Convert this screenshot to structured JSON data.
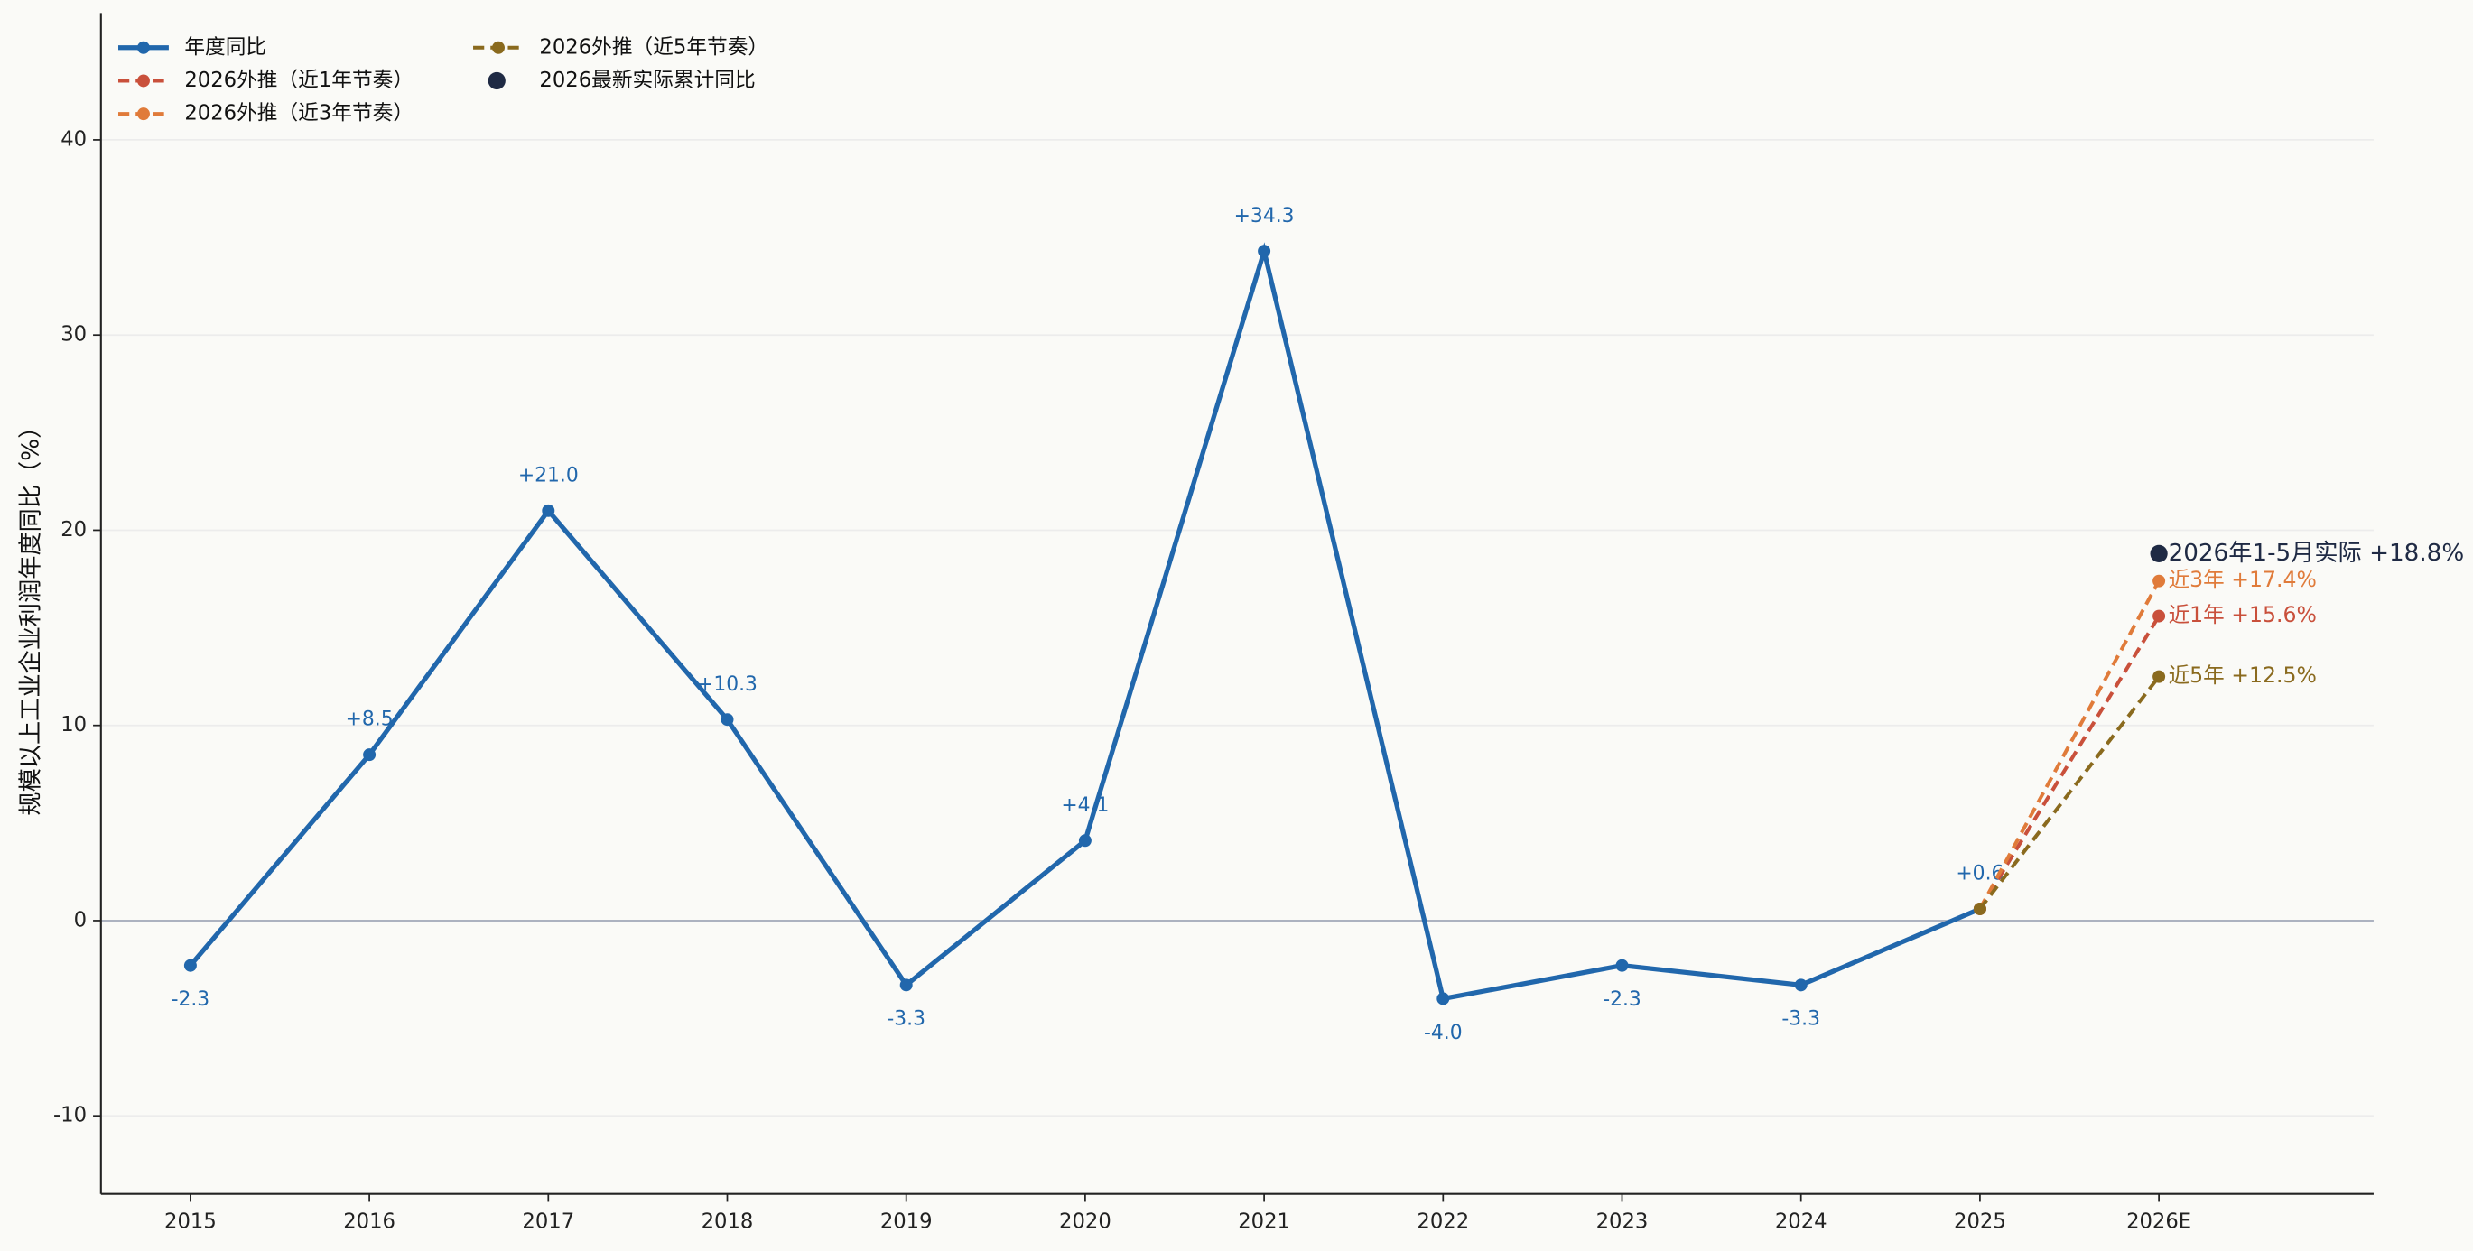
{
  "chart_data": {
    "type": "line",
    "y_label": "规模以上工业企业利润年度同比（%）",
    "categories": [
      "2015",
      "2016",
      "2017",
      "2018",
      "2019",
      "2020",
      "2021",
      "2022",
      "2023",
      "2024",
      "2025",
      "2026E"
    ],
    "ylim": [
      -14,
      46.5
    ],
    "yticks": [
      -10,
      0,
      10,
      20,
      30,
      40
    ],
    "xlim": [
      -0.5,
      12.2
    ],
    "grid": true,
    "legend": "upper left",
    "series": [
      {
        "name": "年度同比",
        "color": "#2167ac",
        "style": "solid",
        "values": [
          -2.3,
          8.5,
          21.0,
          10.3,
          -3.3,
          4.1,
          34.3,
          -4.0,
          -2.3,
          -3.3,
          0.6,
          null
        ],
        "value_labels": [
          "-2.3",
          "+8.5",
          "+21.0",
          "+10.3",
          "-3.3",
          "+4.1",
          "+34.3",
          "-4.0",
          "-2.3",
          "-3.3",
          "+0.6",
          null
        ]
      },
      {
        "name": "2026外推（近1年节奏）",
        "color": "#c9503b",
        "style": "dashed",
        "values": [
          null,
          null,
          null,
          null,
          null,
          null,
          null,
          null,
          null,
          null,
          0.6,
          15.6
        ],
        "value_labels": [
          null,
          null,
          null,
          null,
          null,
          null,
          null,
          null,
          null,
          null,
          null,
          "近1年 +15.6%"
        ]
      },
      {
        "name": "2026外推（近3年节奏）",
        "color": "#e07b3a",
        "style": "dashed",
        "values": [
          null,
          null,
          null,
          null,
          null,
          null,
          null,
          null,
          null,
          null,
          0.6,
          17.4
        ],
        "value_labels": [
          null,
          null,
          null,
          null,
          null,
          null,
          null,
          null,
          null,
          null,
          null,
          "近3年 +17.4%"
        ]
      },
      {
        "name": "2026外推（近5年节奏）",
        "color": "#8a6a1e",
        "style": "dashed",
        "values": [
          null,
          null,
          null,
          null,
          null,
          null,
          null,
          null,
          null,
          null,
          0.6,
          12.5
        ],
        "value_labels": [
          null,
          null,
          null,
          null,
          null,
          null,
          null,
          null,
          null,
          null,
          null,
          "近5年 +12.5%"
        ]
      },
      {
        "name": "2026最新实际累计同比",
        "color": "#1f2a44",
        "style": "point",
        "values": [
          null,
          null,
          null,
          null,
          null,
          null,
          null,
          null,
          null,
          null,
          null,
          18.8
        ],
        "value_labels": [
          null,
          null,
          null,
          null,
          null,
          null,
          null,
          null,
          null,
          null,
          null,
          "2026年1-5月实际 +18.8%"
        ]
      }
    ]
  }
}
